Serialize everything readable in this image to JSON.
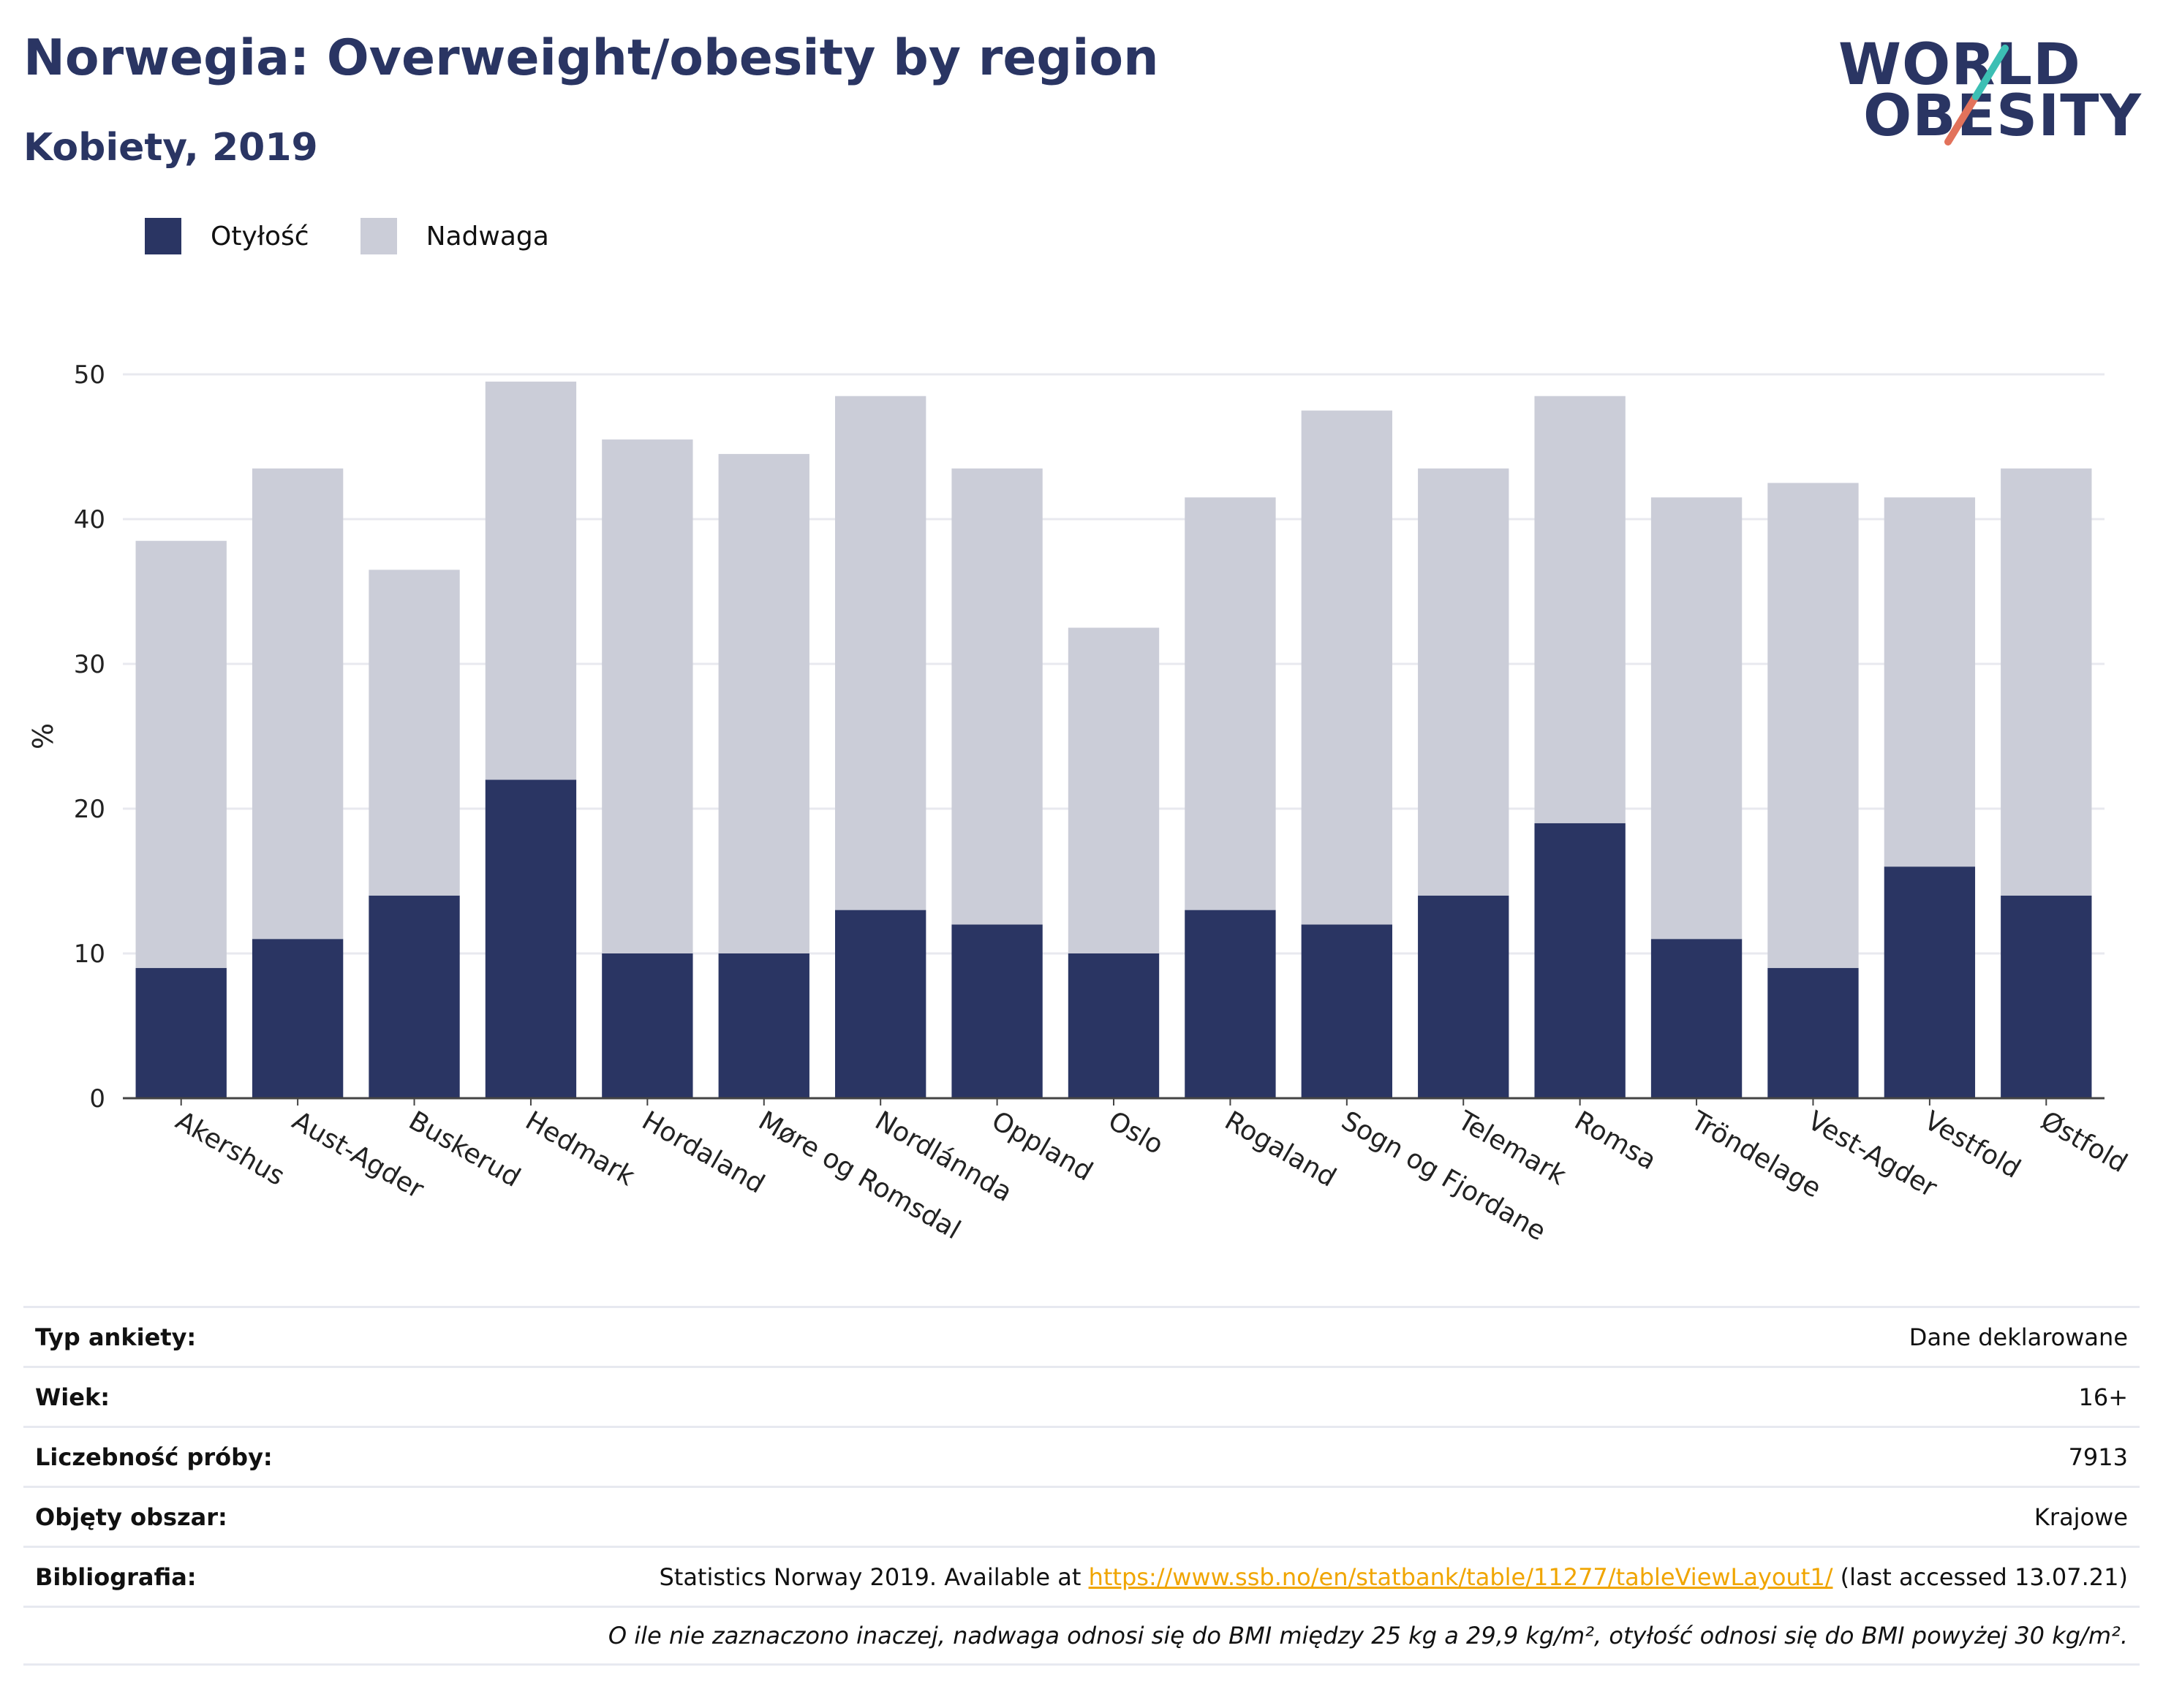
{
  "header": {
    "title": "Norwegia: Overweight/obesity by region",
    "subtitle": "Kobiety, 2019"
  },
  "logo": {
    "line1": "WORLD",
    "line2": "OBESITY"
  },
  "colors": {
    "obesity": "#2a3563",
    "overweight": "#cbcdd8",
    "accent_teal": "#3cbfb4",
    "accent_red": "#e2725b",
    "link": "#f0a500"
  },
  "chart_data": {
    "type": "bar",
    "stacked": true,
    "categories": [
      "Akershus",
      "Aust-Agder",
      "Buskerud",
      "Hedmark",
      "Hordaland",
      "Møre og Romsdal",
      "Nordlánnda",
      "Oppland",
      "Oslo",
      "Rogaland",
      "Sogn og Fjordane",
      "Telemark",
      "Romsa",
      "Tröndelage",
      "Vest-Agder",
      "Vestfold",
      "Østfold"
    ],
    "series": [
      {
        "name": "Otyłość",
        "values": [
          9,
          11,
          14,
          22,
          10,
          10,
          13,
          12,
          10,
          13,
          12,
          14,
          19,
          11,
          9,
          16,
          14
        ]
      },
      {
        "name": "Nadwaga",
        "values": [
          29.5,
          32.5,
          22.5,
          27.5,
          35.5,
          34.5,
          35.5,
          31.5,
          22.5,
          28.5,
          35.5,
          29.5,
          29.5,
          30.5,
          33.5,
          25.5,
          29.5
        ]
      }
    ],
    "ylabel": "%",
    "ylim": [
      0,
      50
    ],
    "yticks": [
      0,
      10,
      20,
      30,
      40,
      50
    ],
    "grid": true,
    "legend_position": "top-left"
  },
  "info": {
    "rows": [
      {
        "label": "Typ ankiety:",
        "value": "Dane deklarowane"
      },
      {
        "label": "Wiek:",
        "value": "16+"
      },
      {
        "label": "Liczebność próby:",
        "value": "7913"
      },
      {
        "label": "Objęty obszar:",
        "value": "Krajowe"
      }
    ],
    "bibliography": {
      "label": "Bibliografia:",
      "prefix": "Statistics Norway 2019. Available at ",
      "link": "https://www.ssb.no/en/statbank/table/11277/tableViewLayout1/",
      "suffix": " (last accessed 13.07.21)"
    },
    "note": "O ile nie zaznaczono inaczej, nadwaga odnosi się do BMI między 25 kg a 29,9 kg/m², otyłość odnosi się do BMI powyżej 30 kg/m²."
  }
}
